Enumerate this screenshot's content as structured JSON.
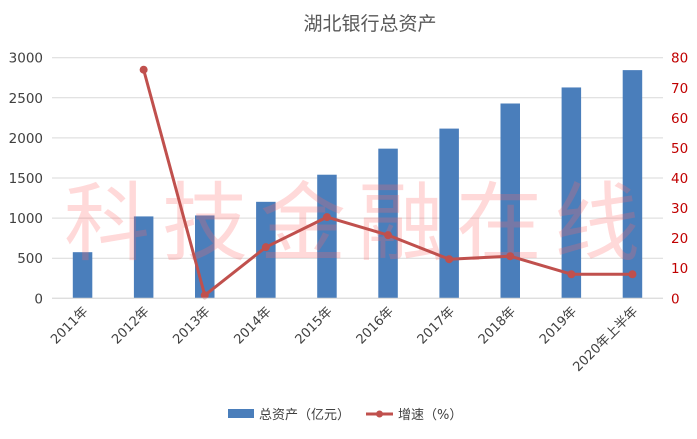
{
  "chart_data": {
    "type": "bar+line",
    "title": "湖北银行总资产",
    "categories": [
      "2011年",
      "2012年",
      "2013年",
      "2014年",
      "2015年",
      "2016年",
      "2017年",
      "2018年",
      "2019年",
      "2020年上半年"
    ],
    "series": [
      {
        "name": "总资产（亿元）",
        "type": "bar",
        "axis": "left",
        "color": "#4a7ebb",
        "values": [
          575,
          1021,
          1033,
          1203,
          1541,
          1866,
          2116,
          2429,
          2629,
          2845
        ]
      },
      {
        "name": "增速（%）",
        "type": "line",
        "axis": "right",
        "color": "#c0504d",
        "values": [
          null,
          76,
          1,
          17,
          27,
          21,
          13,
          14,
          8,
          8
        ]
      }
    ],
    "left_axis": {
      "min": 0,
      "max": 3000,
      "step": 500,
      "ticks": [
        "0",
        "500",
        "1000",
        "1500",
        "2000",
        "2500",
        "3000"
      ],
      "color": "#404040"
    },
    "right_axis": {
      "min": 0,
      "max": 80,
      "step": 10,
      "ticks": [
        "0",
        "10",
        "20",
        "30",
        "40",
        "50",
        "60",
        "70",
        "80"
      ],
      "color": "#c00000"
    },
    "xlabel": "",
    "ylabel": "",
    "grid": true,
    "legend_position": "bottom",
    "watermark": "科技金融在线"
  }
}
